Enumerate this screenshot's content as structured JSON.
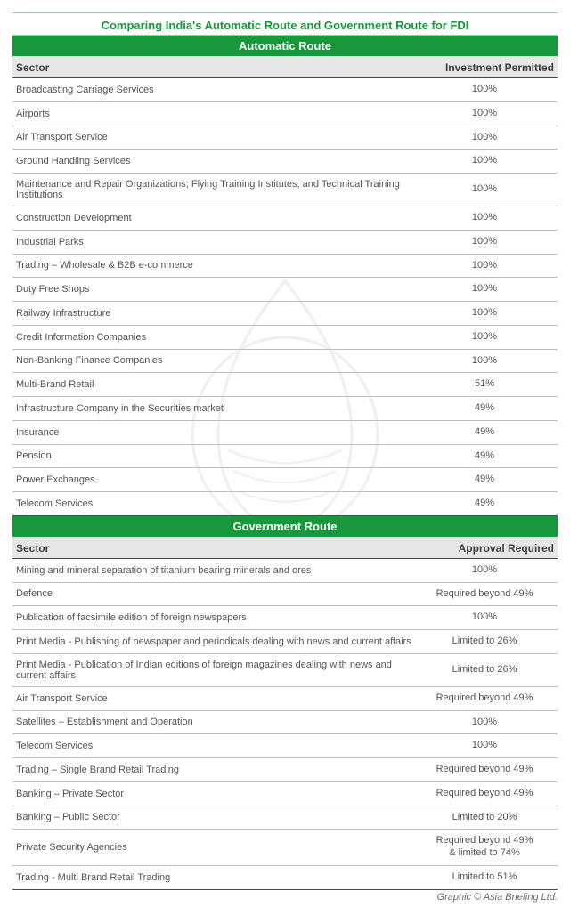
{
  "colors": {
    "accent": "#17993b",
    "title_text": "#17993b",
    "title_border": "#9fc7a7",
    "header_text": "#3e3e3e",
    "row_text": "#555555",
    "th_bg": "#e7e7e7",
    "credit": "#6a6a6a"
  },
  "title": "Comparing India's Automatic Route and Government Route for FDI",
  "credit": "Graphic © Asia Briefing Ltd.",
  "sections": [
    {
      "header": "Automatic Route",
      "columns": [
        "Sector",
        "Investment Permitted"
      ],
      "rows": [
        {
          "sector": "Broadcasting Carriage Services",
          "value": "100%"
        },
        {
          "sector": "Airports",
          "value": "100%"
        },
        {
          "sector": "Air Transport Service",
          "value": "100%"
        },
        {
          "sector": "Ground Handling Services",
          "value": "100%"
        },
        {
          "sector": "Maintenance and Repair Organizations; Flying Training Institutes; and Technical Training Institutions",
          "value": "100%"
        },
        {
          "sector": "Construction Development",
          "value": "100%"
        },
        {
          "sector": "Industrial Parks",
          "value": "100%"
        },
        {
          "sector": "Trading – Wholesale & B2B e-commerce",
          "value": "100%"
        },
        {
          "sector": "Duty Free Shops",
          "value": "100%"
        },
        {
          "sector": "Railway Infrastructure",
          "value": "100%"
        },
        {
          "sector": "Credit Information Companies",
          "value": "100%"
        },
        {
          "sector": "Non-Banking Finance Companies",
          "value": "100%"
        },
        {
          "sector": "Multi-Brand Retail",
          "value": "51%"
        },
        {
          "sector": "Infrastructure Company in the Securities market",
          "value": "49%"
        },
        {
          "sector": "Insurance",
          "value": "49%"
        },
        {
          "sector": "Pension",
          "value": "49%"
        },
        {
          "sector": "Power Exchanges",
          "value": "49%"
        },
        {
          "sector": "Telecom Services",
          "value": "49%"
        }
      ]
    },
    {
      "header": "Government Route",
      "columns": [
        "Sector",
        "Approval Required"
      ],
      "rows": [
        {
          "sector": "Mining and mineral separation of titanium bearing minerals and ores",
          "value": "100%"
        },
        {
          "sector": "Defence",
          "value": "Required beyond 49%"
        },
        {
          "sector": "Publication of facsimile edition of foreign newspapers",
          "value": "100%"
        },
        {
          "sector": "Print Media - Publishing of newspaper and periodicals dealing with news and current affairs",
          "value": "Limited to 26%"
        },
        {
          "sector": "Print Media - Publication of Indian editions of foreign magazines dealing with news and current affairs",
          "value": "Limited to 26%"
        },
        {
          "sector": "Air Transport Service",
          "value": "Required beyond 49%"
        },
        {
          "sector": "Satellites – Establishment and Operation",
          "value": "100%"
        },
        {
          "sector": "Telecom Services",
          "value": "100%"
        },
        {
          "sector": "Trading – Single Brand Retail Trading",
          "value": "Required beyond 49%"
        },
        {
          "sector": "Banking – Private Sector",
          "value": "Required beyond 49%"
        },
        {
          "sector": "Banking – Public Sector",
          "value": "Limited to 20%"
        },
        {
          "sector": "Private Security Agencies",
          "value": "Required beyond 49%\n& limited to 74%"
        },
        {
          "sector": "Trading - Multi Brand Retail Trading",
          "value": "Limited to 51%"
        }
      ]
    }
  ]
}
